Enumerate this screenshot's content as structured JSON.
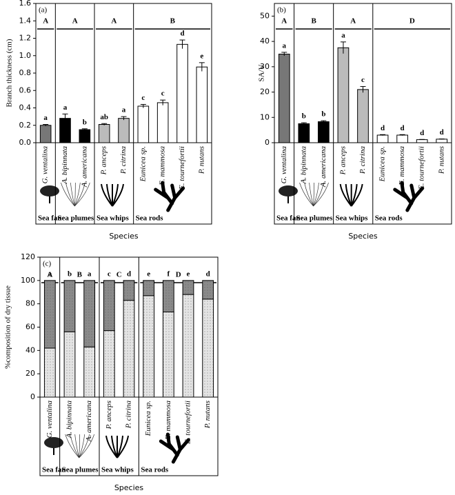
{
  "chart_data": [
    {
      "type": "bar",
      "label": "(a)",
      "ylabel": "Branch thickness (cm)",
      "xlabel": "Species",
      "categories": [
        "G. ventalina",
        "A. bipinnata",
        "A. americana",
        "P. anceps",
        "P. citrina",
        "Eunicea sp.",
        "E. mammosa",
        "E. tournefortii",
        "P. nutans"
      ],
      "groups": [
        {
          "letter": "A",
          "name": "Sea fan"
        },
        {
          "letter": "A",
          "name": "Sea plumes"
        },
        {
          "letter": "A",
          "name": "Sea whips"
        },
        {
          "letter": "B",
          "name": "Sea rods"
        }
      ],
      "values": [
        0.2,
        0.28,
        0.15,
        0.21,
        0.28,
        0.42,
        0.46,
        1.13,
        0.87
      ],
      "errors": [
        0.01,
        0.05,
        0.01,
        0.01,
        0.02,
        0.02,
        0.03,
        0.05,
        0.05
      ],
      "letters": [
        "a",
        "a",
        "b",
        "ab",
        "a",
        "c",
        "c",
        "d",
        "e"
      ],
      "colors": [
        "#777777",
        "#000000",
        "#000000",
        "#bbbbbb",
        "#bbbbbb",
        "#ffffff",
        "#ffffff",
        "#ffffff",
        "#ffffff"
      ],
      "ylim": [
        0,
        1.6
      ],
      "yticks": [
        {
          "value": 0,
          "label": "0.0"
        },
        {
          "value": 0.2,
          "label": "0.2"
        },
        {
          "value": 0.4,
          "label": "0.4"
        },
        {
          "value": 0.6,
          "label": "0.6"
        },
        {
          "value": 0.8,
          "label": "0.8"
        },
        {
          "value": 1,
          "label": "1.0"
        },
        {
          "value": 1.2,
          "label": "1.2"
        },
        {
          "value": 1.4,
          "label": "1.4"
        },
        {
          "value": 1.6,
          "label": "1.6"
        }
      ]
    },
    {
      "type": "bar",
      "label": "(b)",
      "ylabel": "SA/V",
      "xlabel": "Species",
      "categories": [
        "G. ventalina",
        "A. bipinnata",
        "A. americana",
        "P. anceps",
        "P. citrina",
        "Eunicea sp.",
        "E. mammosa",
        "E. tournefortii",
        "P. nutans"
      ],
      "groups": [
        {
          "letter": "A",
          "name": "Sea fan"
        },
        {
          "letter": "B",
          "name": "Sea plumes"
        },
        {
          "letter": "A",
          "name": "Sea whips"
        },
        {
          "letter": "D",
          "name": "Sea rods"
        }
      ],
      "values": [
        35,
        7.5,
        8.3,
        37.5,
        21,
        3,
        3,
        1.2,
        1.4
      ],
      "errors": [
        0.7,
        0.4,
        0.4,
        2.3,
        1.2,
        0.2,
        0.2,
        0.1,
        0.1
      ],
      "letters": [
        "a",
        "b",
        "b",
        "a",
        "c",
        "d",
        "d",
        "d",
        "d"
      ],
      "colors": [
        "#777777",
        "#000000",
        "#000000",
        "#bbbbbb",
        "#bbbbbb",
        "#ffffff",
        "#ffffff",
        "#ffffff",
        "#ffffff"
      ],
      "ylim": [
        0,
        55
      ],
      "yticks": [
        0,
        10,
        20,
        30,
        40,
        50
      ]
    },
    {
      "type": "stacked_bar",
      "label": "(c)",
      "ylabel": "%composition of dry tissue",
      "xlabel": "Species",
      "categories": [
        "G. ventalina",
        "A. bipinnata",
        "A. americana",
        "P. anceps",
        "P. citrina",
        "Eunicea sp.",
        "E. mammosa",
        "E. tournefortii",
        "P. nutans"
      ],
      "groups": [
        {
          "letter": "A",
          "name": "Sea fan"
        },
        {
          "letter": "B",
          "name": "Sea plumes"
        },
        {
          "letter": "C",
          "name": "Sea whips"
        },
        {
          "letter": "D",
          "name": "Sea rods"
        }
      ],
      "series": [
        {
          "color": "#e4e4e4",
          "pattern": "dots",
          "values": [
            42,
            56,
            43,
            57,
            83,
            87,
            73,
            88,
            84
          ]
        },
        {
          "color": "#8a8a8a",
          "pattern": "dots",
          "values": [
            58,
            44,
            57,
            43,
            17,
            13,
            27,
            12,
            16
          ]
        }
      ],
      "letters": [
        "a",
        "b",
        "a",
        "c",
        "d",
        "e",
        "f",
        "e",
        "d"
      ],
      "ylim": [
        0,
        120
      ],
      "yticks": [
        0,
        20,
        40,
        60,
        80,
        100,
        120
      ]
    }
  ]
}
